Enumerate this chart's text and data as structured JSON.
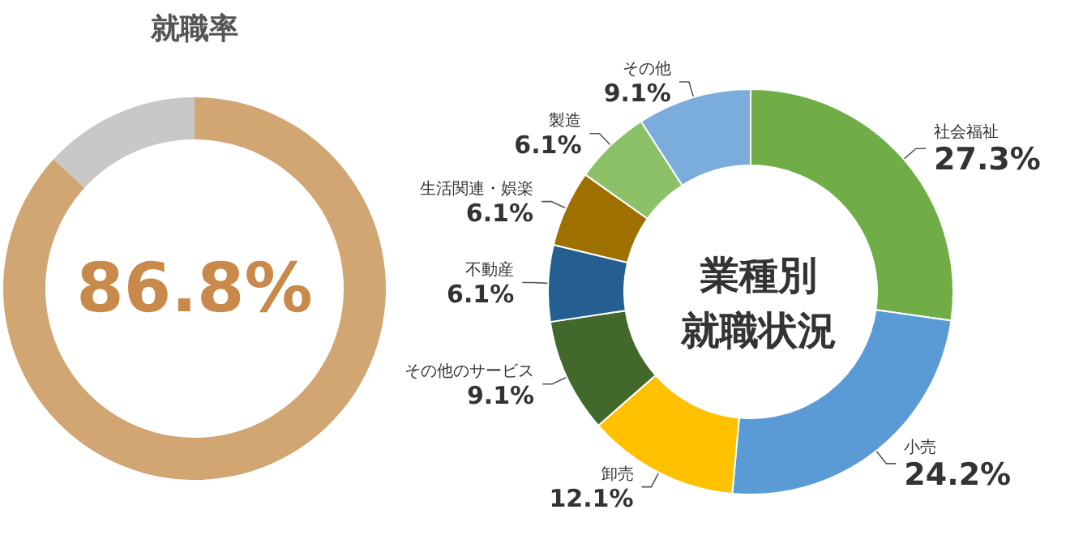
{
  "chart_data": [
    {
      "type": "donut",
      "title": "就職率",
      "categories": [
        null,
        null
      ],
      "values": [
        86.8,
        13.2
      ],
      "colors": [
        "#d2a673",
        "#c8c8c8"
      ],
      "annotations": [
        "86.8%"
      ]
    },
    {
      "type": "donut",
      "title": "業種別",
      "subtitle": "就職状況",
      "categories": [
        "社会福祉",
        "小売",
        "卸売",
        "その他のサービス",
        "不動産",
        "生活関連・娯楽",
        "製造",
        "その他"
      ],
      "values": [
        27.3,
        24.2,
        12.1,
        9.1,
        6.1,
        6.1,
        6.1,
        9.1
      ],
      "colors": [
        "#70ad47",
        "#5b9bd5",
        "#ffc000",
        "#43682b",
        "#255e91",
        "#9e7000",
        "#8cc168",
        "#7aacdc"
      ],
      "value_labels": [
        "27.3%",
        "24.2%",
        "12.1%",
        "9.1%",
        "6.1%",
        "6.1%",
        "6.1%",
        "9.1%"
      ]
    }
  ]
}
